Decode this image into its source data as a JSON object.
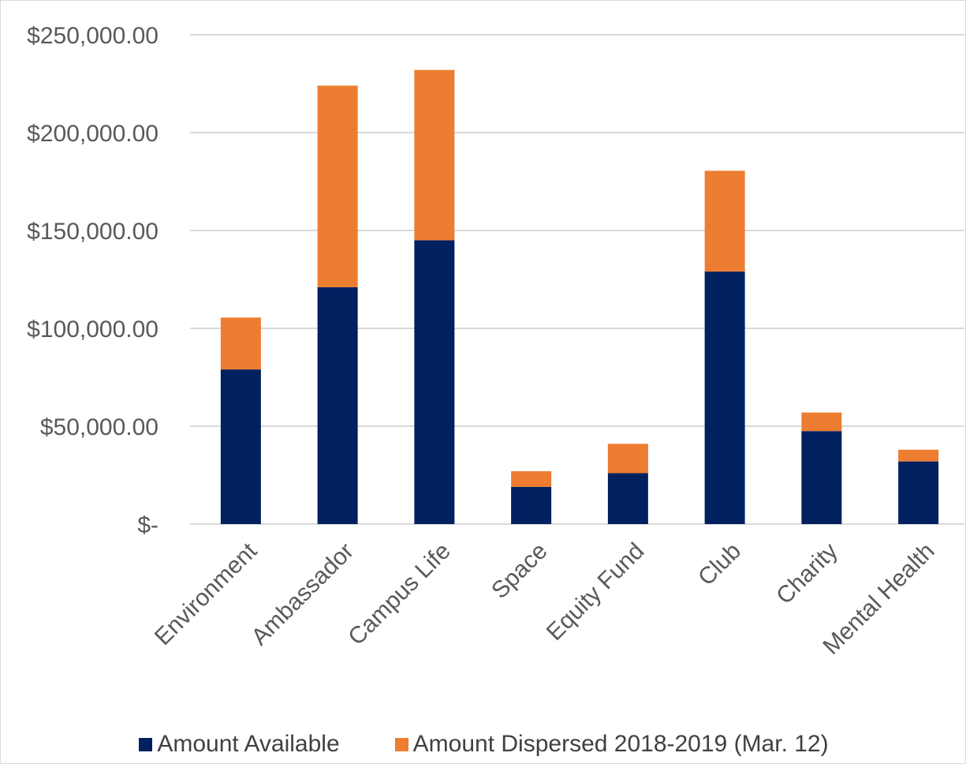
{
  "chart_data": {
    "type": "bar",
    "stacked": true,
    "categories": [
      "Environment",
      "Ambassador",
      "Campus Life",
      "Space",
      "Equity Fund",
      "Club",
      "Charity",
      "Mental Health"
    ],
    "series": [
      {
        "name": "Amount Available",
        "color": "#002060",
        "values": [
          79000,
          121000,
          145000,
          19000,
          26000,
          129000,
          47500,
          32000
        ]
      },
      {
        "name": "Amount Dispersed 2018-2019 (Mar. 12)",
        "color": "#ED7D31",
        "values": [
          26500,
          103000,
          87000,
          8000,
          15000,
          51500,
          9500,
          6000
        ]
      }
    ],
    "ylim": [
      0,
      250000
    ],
    "y_ticks": [
      0,
      50000,
      100000,
      150000,
      200000,
      250000
    ],
    "y_tick_labels": [
      "$-",
      "$50,000.00",
      "$100,000.00",
      "$150,000.00",
      "$200,000.00",
      "$250,000.00"
    ],
    "grid": true,
    "legend_position": "bottom",
    "title": "",
    "xlabel": "",
    "ylabel": ""
  }
}
